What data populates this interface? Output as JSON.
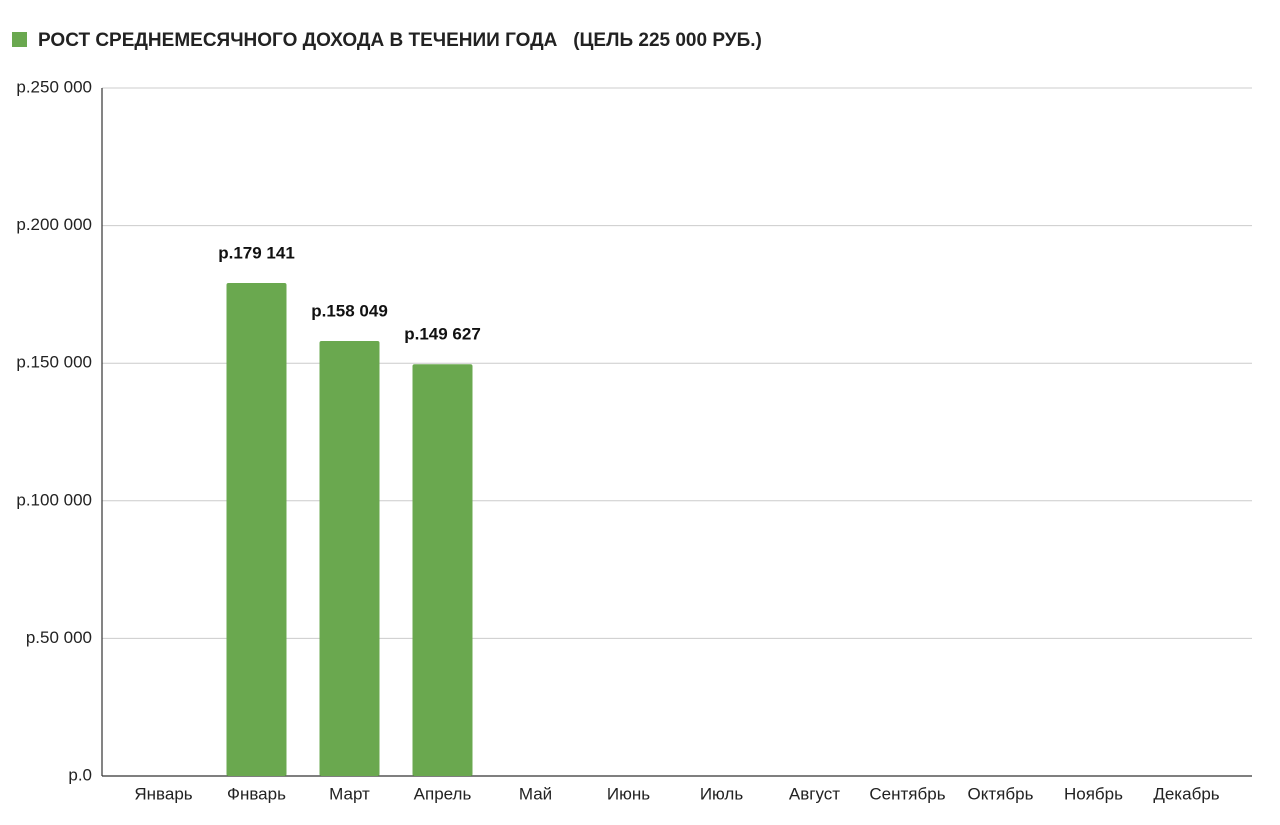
{
  "chart_data": {
    "type": "bar",
    "series": [
      {
        "name": "РОСТ СРЕДНЕМЕСЯЧНОГО ДОХОДА В ТЕЧЕНИИ ГОДА   (ЦЕЛЬ 225 000 РУБ.)",
        "color": "#6aa84f",
        "values": [
          null,
          179141,
          158049,
          149627,
          null,
          null,
          null,
          null,
          null,
          null,
          null,
          null
        ],
        "value_labels": [
          null,
          "р.179 141",
          "р.158 049",
          "р.149 627",
          null,
          null,
          null,
          null,
          null,
          null,
          null,
          null
        ]
      }
    ],
    "categories": [
      "Январь",
      "Фнварь",
      "Март",
      "Апрель",
      "Май",
      "Июнь",
      "Июль",
      "Август",
      "Сентябрь",
      "Октябрь",
      "Ноябрь",
      "Декабрь"
    ],
    "ylim": [
      0,
      250000
    ],
    "yticks": [
      {
        "value": 0,
        "label": "р.0"
      },
      {
        "value": 50000,
        "label": "р.50 000"
      },
      {
        "value": 100000,
        "label": "р.100 000"
      },
      {
        "value": 150000,
        "label": "р.150 000"
      },
      {
        "value": 200000,
        "label": "р.200 000"
      },
      {
        "value": 250000,
        "label": "р.250 000"
      }
    ],
    "grid": true
  }
}
